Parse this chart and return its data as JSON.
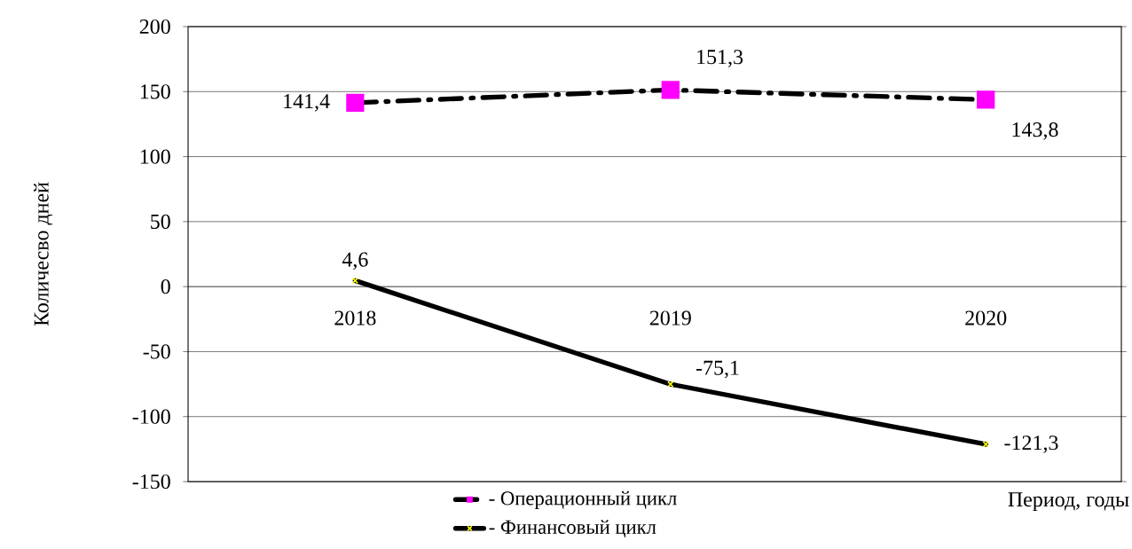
{
  "chart_data": {
    "type": "line",
    "categories": [
      "2018",
      "2019",
      "2020"
    ],
    "series": [
      {
        "name": "- Операционный цикл",
        "color": "#000000",
        "colors": [
          "#ff00ff",
          "#ff00ff",
          "#ff00ff"
        ],
        "marker": "square",
        "line_style": "dashdot",
        "values": [
          141.4,
          151.3,
          143.8
        ],
        "value_labels": [
          "141,4",
          "151,3",
          "143,8"
        ]
      },
      {
        "name": "- Финансовый цикл",
        "color": "#000000",
        "colors": [
          "#ffff00",
          "#ffff00",
          "#ffff00"
        ],
        "marker": "cross",
        "line_style": "solid",
        "values": [
          4.6,
          -75.1,
          -121.3
        ],
        "value_labels": [
          "4,6",
          "-75,1",
          "-121,3"
        ]
      }
    ],
    "xlabel": "Период, годы",
    "ylabel": "Количесво дней",
    "ylim": [
      -150,
      200
    ],
    "yticks": [
      -150,
      -100,
      -50,
      0,
      50,
      100,
      150,
      200
    ],
    "grid": "y",
    "legend": "bottom"
  }
}
